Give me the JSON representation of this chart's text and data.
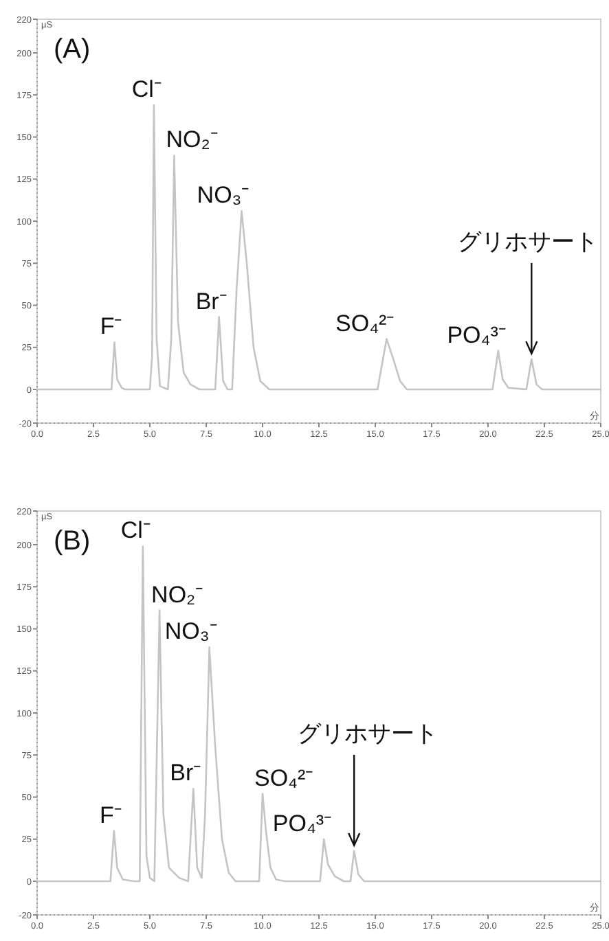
{
  "chart_data": [
    {
      "type": "line",
      "title": "(A)",
      "ylabel": "µS",
      "xlabel": "分",
      "series": [
        {
          "color": "#c4c4c4",
          "x": [
            0,
            3.3,
            3.43,
            3.55,
            3.75,
            3.9,
            5.0,
            5.1,
            5.18,
            5.3,
            5.45,
            5.8,
            5.95,
            6.08,
            6.25,
            6.5,
            6.8,
            7.2,
            7.9,
            8.07,
            8.25,
            8.45,
            8.65,
            8.85,
            9.07,
            9.3,
            9.6,
            9.9,
            10.3,
            15.1,
            15.5,
            15.8,
            16.1,
            16.4,
            20.2,
            20.45,
            20.65,
            20.9,
            21.7,
            21.93,
            22.15,
            22.4,
            25
          ],
          "values": [
            0,
            0,
            28,
            6,
            1,
            0,
            0,
            20,
            169,
            30,
            2,
            0,
            30,
            139,
            40,
            10,
            3,
            0,
            0,
            43,
            5,
            0,
            0,
            60,
            106,
            75,
            25,
            5,
            0,
            0,
            30,
            18,
            5,
            0,
            0,
            23,
            6,
            1,
            0,
            18,
            3,
            0,
            0
          ]
        }
      ],
      "annotations": [
        {
          "text": "F⁻",
          "x": 3.43,
          "y": 28
        },
        {
          "text": "Cl⁻",
          "x": 5.18,
          "y": 169
        },
        {
          "text": "NO₂⁻",
          "x": 6.08,
          "y": 139
        },
        {
          "text": "Br⁻",
          "x": 8.07,
          "y": 43
        },
        {
          "text": "NO₃⁻",
          "x": 9.07,
          "y": 106
        },
        {
          "text": "SO₄²⁻",
          "x": 15.5,
          "y": 30
        },
        {
          "text": "PO₄³⁻",
          "x": 20.45,
          "y": 23
        },
        {
          "text": "グリホサート",
          "x": 21.93,
          "y": 18
        }
      ],
      "xlim": [
        0,
        25
      ],
      "xticks": [
        {
          "value": 0,
          "label": "0.0"
        },
        2.5,
        {
          "value": 5,
          "label": "5.0"
        },
        7.5,
        {
          "value": 10,
          "label": "10.0"
        },
        12.5,
        {
          "value": 15,
          "label": "15.0"
        },
        17.5,
        {
          "value": 20,
          "label": "20.0"
        },
        22.5,
        {
          "value": 25,
          "label": "25.0"
        }
      ],
      "ylim": [
        -20,
        220
      ],
      "yticks": [
        -20,
        0,
        25,
        50,
        75,
        100,
        125,
        150,
        175,
        200,
        220
      ],
      "grid": false
    },
    {
      "type": "line",
      "title": "(B)",
      "ylabel": "µS",
      "xlabel": "分",
      "series": [
        {
          "color": "#c4c4c4",
          "x": [
            0,
            3.25,
            3.41,
            3.55,
            3.8,
            4.3,
            4.55,
            4.69,
            4.85,
            5.0,
            5.2,
            5.43,
            5.6,
            5.85,
            6.3,
            6.7,
            6.93,
            7.1,
            7.3,
            7.45,
            7.64,
            7.9,
            8.2,
            8.5,
            8.8,
            9.85,
            10.0,
            10.15,
            10.35,
            10.6,
            11,
            12.55,
            12.72,
            12.9,
            13.2,
            13.6,
            13.9,
            14.06,
            14.25,
            14.5,
            25
          ],
          "values": [
            0,
            0,
            30,
            8,
            1,
            0,
            0,
            199,
            15,
            2,
            0,
            161,
            40,
            8,
            2,
            0,
            55,
            8,
            2,
            40,
            139,
            80,
            25,
            5,
            0,
            0,
            52,
            30,
            8,
            1,
            0,
            0,
            25,
            10,
            3,
            0,
            0,
            18,
            4,
            0,
            0
          ]
        }
      ],
      "annotations": [
        {
          "text": "F⁻",
          "x": 3.41,
          "y": 30
        },
        {
          "text": "Cl⁻",
          "x": 4.69,
          "y": 199
        },
        {
          "text": "NO₂⁻",
          "x": 5.43,
          "y": 161
        },
        {
          "text": "Br⁻",
          "x": 6.93,
          "y": 55
        },
        {
          "text": "NO₃⁻",
          "x": 7.64,
          "y": 139
        },
        {
          "text": "SO₄²⁻",
          "x": 10.0,
          "y": 52
        },
        {
          "text": "PO₄³⁻",
          "x": 12.72,
          "y": 25
        },
        {
          "text": "グリホサート",
          "x": 14.06,
          "y": 18
        }
      ],
      "xlim": [
        0,
        25
      ],
      "xticks": [
        {
          "value": 0,
          "label": "0.0"
        },
        2.5,
        {
          "value": 5,
          "label": "5.0"
        },
        7.5,
        {
          "value": 10,
          "label": "10.0"
        },
        12.5,
        {
          "value": 15,
          "label": "15.0"
        },
        17.5,
        {
          "value": 20,
          "label": "20.0"
        },
        22.5,
        {
          "value": 25,
          "label": "25.0"
        }
      ],
      "ylim": [
        -20,
        220
      ],
      "yticks": [
        -20,
        0,
        25,
        50,
        75,
        100,
        125,
        150,
        175,
        200,
        220
      ],
      "grid": false
    }
  ]
}
